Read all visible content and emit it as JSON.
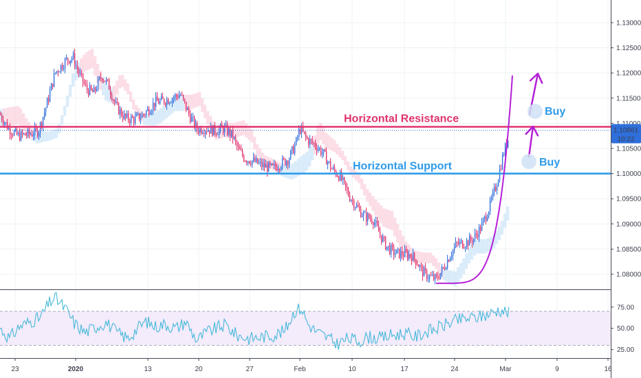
{
  "colors": {
    "up": "#2f6fdb",
    "down": "#e0306a",
    "cloud_bull": "#cfe6f8",
    "cloud_bear": "#fbd3df",
    "resistance": "#e0336e",
    "support": "#2d9be8",
    "arrow": "#b41fd6",
    "buy_text": "#2d9be8",
    "rsi_line": "#46b9d9",
    "rsi_band": "#f4ebfb",
    "price_badge": "#2f6fdb"
  },
  "price_badge": {
    "price": "1.10861",
    "time": "10:22"
  },
  "annotations": {
    "resistance_label": "Horizontal Resistance",
    "support_label": "Horizontal Support",
    "buy_upper": "Buy",
    "buy_lower": "Buy"
  },
  "chart_data": [
    {
      "type": "candlestick",
      "title": "",
      "y_ticks": [
        "1.13000",
        "1.12500",
        "1.12000",
        "1.11500",
        "1.11000",
        "1.10500",
        "1.10000",
        "1.09500",
        "1.09000",
        "1.08500",
        "1.08000"
      ],
      "ylim": [
        1.077,
        1.1345
      ],
      "x_tick_labels": [
        "23",
        "2020",
        "13",
        "20",
        "27",
        "Feb",
        "10",
        "17",
        "24",
        "Mar",
        "9",
        "16"
      ],
      "horizontal_lines": [
        {
          "name": "Horizontal Resistance",
          "value": 1.1093
        },
        {
          "name": "Horizontal Support",
          "value": 1.1
        }
      ],
      "current_price": 1.10861,
      "close_path": [
        [
          0,
          1.1118
        ],
        [
          12,
          1.109
        ],
        [
          26,
          1.1075
        ],
        [
          42,
          1.1078
        ],
        [
          56,
          1.1085
        ],
        [
          68,
          1.1138
        ],
        [
          80,
          1.12
        ],
        [
          96,
          1.1225
        ],
        [
          106,
          1.1232
        ],
        [
          116,
          1.1195
        ],
        [
          126,
          1.1168
        ],
        [
          136,
          1.116
        ],
        [
          148,
          1.1195
        ],
        [
          158,
          1.1175
        ],
        [
          168,
          1.1135
        ],
        [
          182,
          1.111
        ],
        [
          196,
          1.1108
        ],
        [
          206,
          1.1115
        ],
        [
          214,
          1.1125
        ],
        [
          226,
          1.1142
        ],
        [
          238,
          1.1145
        ],
        [
          250,
          1.115
        ],
        [
          262,
          1.1158
        ],
        [
          274,
          1.112
        ],
        [
          286,
          1.1088
        ],
        [
          298,
          1.109
        ],
        [
          312,
          1.1085
        ],
        [
          326,
          1.109
        ],
        [
          338,
          1.1075
        ],
        [
          346,
          1.1048
        ],
        [
          356,
          1.103
        ],
        [
          368,
          1.1025
        ],
        [
          382,
          1.1015
        ],
        [
          396,
          1.101
        ],
        [
          408,
          1.102
        ],
        [
          420,
          1.103
        ],
        [
          430,
          1.106
        ],
        [
          436,
          1.109
        ],
        [
          446,
          1.1068
        ],
        [
          458,
          1.1058
        ],
        [
          470,
          1.104
        ],
        [
          482,
          1.101
        ],
        [
          494,
          1.0995
        ],
        [
          506,
          1.096
        ],
        [
          518,
          1.0935
        ],
        [
          530,
          1.0915
        ],
        [
          542,
          1.091
        ],
        [
          552,
          1.088
        ],
        [
          562,
          1.0855
        ],
        [
          574,
          1.0842
        ],
        [
          586,
          1.084
        ],
        [
          598,
          1.0838
        ],
        [
          606,
          1.0825
        ],
        [
          614,
          1.0805
        ],
        [
          624,
          1.0795
        ],
        [
          634,
          1.079
        ],
        [
          644,
          1.081
        ],
        [
          654,
          1.0838
        ],
        [
          664,
          1.086
        ],
        [
          676,
          1.0862
        ],
        [
          688,
          1.087
        ],
        [
          700,
          1.0895
        ],
        [
          712,
          1.0935
        ],
        [
          722,
          1.098
        ],
        [
          732,
          1.104
        ],
        [
          740,
          1.1075
        ]
      ],
      "parabolic_curve": {
        "start_x": 634,
        "start": 1.0782,
        "end_x": 745,
        "end": 1.1195
      }
    },
    {
      "type": "line",
      "title": "",
      "y_ticks": [
        "75.00",
        "50.00",
        "25.00"
      ],
      "ylim": [
        15,
        95
      ],
      "levels": [
        70,
        30
      ],
      "rsi_path": [
        [
          0,
          50
        ],
        [
          14,
          38
        ],
        [
          28,
          52
        ],
        [
          44,
          58
        ],
        [
          58,
          62
        ],
        [
          72,
          80
        ],
        [
          80,
          86
        ],
        [
          96,
          72
        ],
        [
          108,
          56
        ],
        [
          124,
          45
        ],
        [
          140,
          52
        ],
        [
          154,
          57
        ],
        [
          170,
          45
        ],
        [
          186,
          38
        ],
        [
          200,
          50
        ],
        [
          212,
          58
        ],
        [
          226,
          52
        ],
        [
          240,
          55
        ],
        [
          256,
          50
        ],
        [
          270,
          58
        ],
        [
          286,
          36
        ],
        [
          300,
          45
        ],
        [
          314,
          50
        ],
        [
          328,
          54
        ],
        [
          344,
          42
        ],
        [
          362,
          38
        ],
        [
          380,
          40
        ],
        [
          398,
          42
        ],
        [
          414,
          47
        ],
        [
          428,
          70
        ],
        [
          438,
          74
        ],
        [
          448,
          55
        ],
        [
          460,
          46
        ],
        [
          474,
          40
        ],
        [
          490,
          32
        ],
        [
          506,
          38
        ],
        [
          522,
          35
        ],
        [
          536,
          40
        ],
        [
          552,
          38
        ],
        [
          570,
          42
        ],
        [
          588,
          44
        ],
        [
          604,
          40
        ],
        [
          620,
          46
        ],
        [
          636,
          50
        ],
        [
          652,
          56
        ],
        [
          668,
          60
        ],
        [
          684,
          62
        ],
        [
          700,
          64
        ],
        [
          714,
          68
        ],
        [
          726,
          72
        ],
        [
          734,
          70
        ],
        [
          740,
          68
        ]
      ]
    }
  ]
}
